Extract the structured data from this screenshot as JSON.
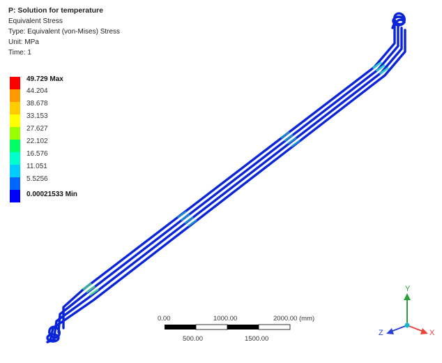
{
  "header": {
    "title": "P: Solution for temperature",
    "result": "Equivalent Stress",
    "type": "Type: Equivalent (von-Mises) Stress",
    "unit": "Unit: MPa",
    "time": "Time: 1"
  },
  "legend": {
    "max_label": "49.729 Max",
    "values": [
      "44.204",
      "38.678",
      "33.153",
      "27.627",
      "22.102",
      "16.576",
      "11.051",
      "5.5256"
    ],
    "min_label": "0.00021533 Min",
    "colors": [
      "#ff0000",
      "#ff9900",
      "#ffcc00",
      "#ffff00",
      "#99ff00",
      "#00ff66",
      "#00ffcc",
      "#00ccff",
      "#0066ff",
      "#0000ff"
    ]
  },
  "scale_bar": {
    "top_labels": [
      "0.00",
      "1000.00",
      "2000.00 (mm)"
    ],
    "bottom_labels": [
      "500.00",
      "1500.00"
    ]
  },
  "triad": {
    "x_label": "X",
    "y_label": "Y",
    "z_label": "Z",
    "x_color": "#e8453c",
    "y_color": "#2e9e3a",
    "z_color": "#2a3fd6"
  }
}
